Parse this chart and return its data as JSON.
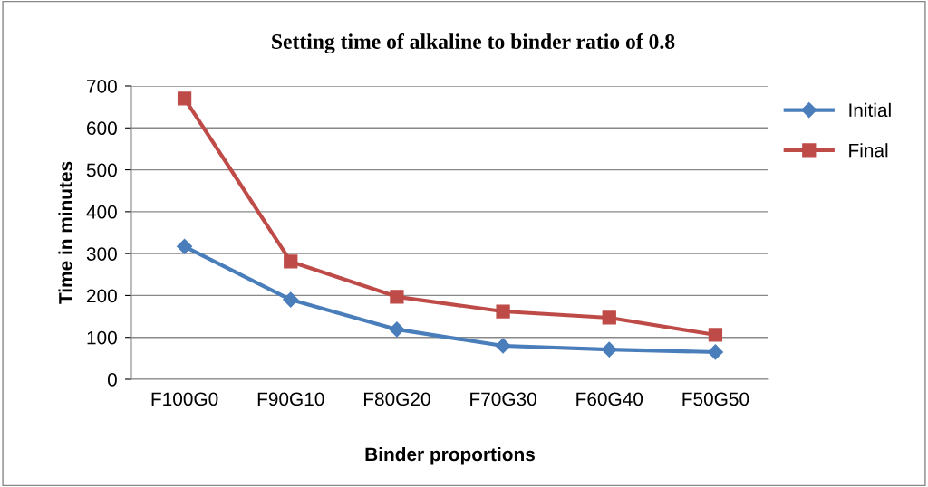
{
  "chart_data": {
    "type": "line",
    "title": "Setting time of alkaline to binder ratio of 0.8",
    "xlabel": "Binder proportions",
    "ylabel": "Time in minutes",
    "categories": [
      "F100G0",
      "F90G10",
      "F80G20",
      "F70G30",
      "F60G40",
      "F50G50"
    ],
    "series": [
      {
        "name": "Initial",
        "color": "#4a7ebb",
        "values": [
          317,
          190,
          119,
          80,
          71,
          65
        ],
        "marker": "diamond"
      },
      {
        "name": "Final",
        "color": "#be4b48",
        "values": [
          670,
          281,
          197,
          162,
          147,
          106
        ],
        "marker": "square"
      }
    ],
    "ylim": [
      0,
      700
    ],
    "yticks": [
      0,
      100,
      200,
      300,
      400,
      500,
      600,
      700
    ],
    "grid": "y",
    "legend": "right",
    "line_style": "solid"
  }
}
